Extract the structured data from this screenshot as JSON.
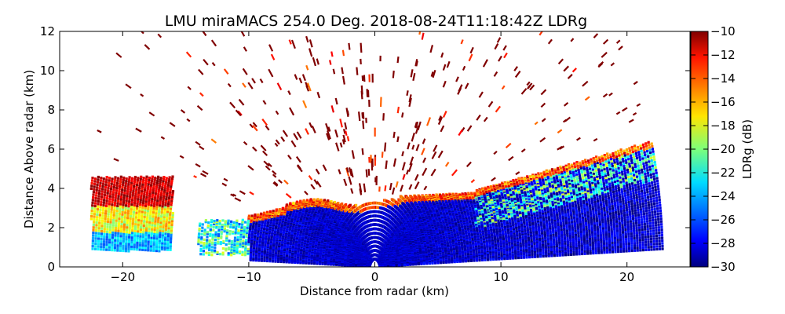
{
  "chart_data": {
    "type": "heatmap",
    "title": "LMU miraMACS 254.0 Deg. 2018-08-24T11:18:42Z  LDRg",
    "xlabel": "Distance from radar (km)",
    "ylabel": "Distance Above radar  (km)",
    "xlim": [
      -25,
      25
    ],
    "ylim": [
      0,
      12
    ],
    "xticks": [
      -20,
      -10,
      0,
      10,
      20
    ],
    "xtick_labels": [
      "−20",
      "−10",
      "0",
      "10",
      "20"
    ],
    "yticks": [
      0,
      2,
      4,
      6,
      8,
      10,
      12
    ],
    "ytick_labels": [
      "0",
      "2",
      "4",
      "6",
      "8",
      "10",
      "12"
    ],
    "grid": false,
    "colorbar": {
      "label": "LDRg (dB)",
      "colormap": "jet",
      "range": [
        -30,
        -10
      ],
      "ticks": [
        -30,
        -28,
        -26,
        -24,
        -22,
        -20,
        -18,
        -16,
        -14,
        -12,
        -10
      ],
      "tick_labels": [
        "−30",
        "−28",
        "−26",
        "−24",
        "−22",
        "−20",
        "−18",
        "−16",
        "−14",
        "−12",
        "−10"
      ]
    },
    "scan": {
      "kind": "RHI",
      "azimuth_deg": 254.0,
      "timestamp": "2018-08-24T11:18:42Z",
      "max_range_km": 23
    },
    "regions": [
      {
        "name": "low-ldr-cloud-core",
        "ldr_db": -29,
        "x_range": [
          -10,
          19
        ],
        "y_range": [
          0,
          3.5
        ]
      },
      {
        "name": "left-layer-band",
        "ldr_db": -24,
        "x_range": [
          -22.5,
          -16
        ],
        "y_range": [
          0.8,
          4.5
        ]
      },
      {
        "name": "melting-layer-top",
        "ldr_db": -15,
        "x_range": [
          -10,
          18
        ],
        "y_range": [
          3.2,
          4.2
        ]
      },
      {
        "name": "upper-right-cells",
        "ldr_db": -22,
        "x_range": [
          8,
          18
        ],
        "y_range": [
          3.5,
          6.0
        ]
      },
      {
        "name": "sparse-high-noise",
        "ldr_db": -10,
        "x_range": [
          -20,
          22
        ],
        "y_range": [
          3.5,
          12
        ]
      }
    ]
  }
}
